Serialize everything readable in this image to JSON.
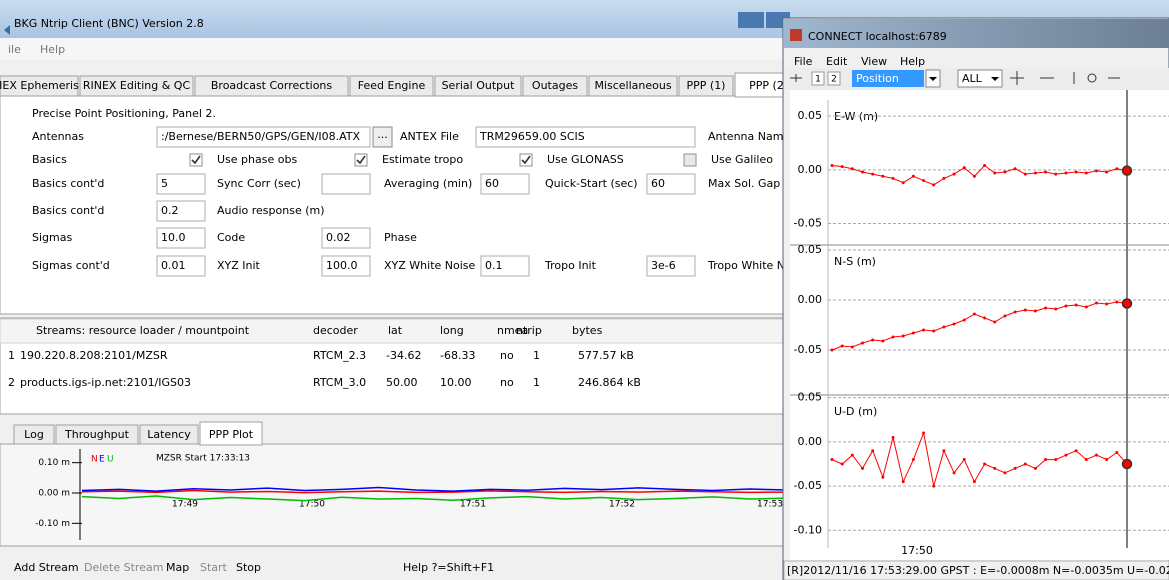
{
  "main_window": {
    "title": "BKG Ntrip Client (BNC) Version 2.8",
    "menu": [
      "ile",
      "Help"
    ],
    "tabs": [
      "IEX Ephemeris",
      "RINEX Editing & QC",
      "Broadcast Corrections",
      "Feed Engine",
      "Serial Output",
      "Outages",
      "Miscellaneous",
      "PPP (1)",
      "PPP (2"
    ],
    "active_tab": 8,
    "panel_title": "Precise Point Positioning, Panel 2.",
    "form": [
      {
        "label": "Antennas",
        "items": [
          {
            "type": "field",
            "text": ":/Bernese/BERN50/GPS/GEN/I08.ATX"
          },
          {
            "type": "button",
            "text": "..."
          },
          {
            "type": "text",
            "text": "ANTEX File"
          },
          {
            "type": "field",
            "text": "TRM29659.00    SCIS"
          },
          {
            "type": "text",
            "text": "Antenna Name"
          }
        ]
      },
      {
        "label": "Basics",
        "items": [
          {
            "type": "check",
            "text": "Use phase obs",
            "checked": true
          },
          {
            "type": "check",
            "text": "Estimate tropo",
            "checked": true
          },
          {
            "type": "check",
            "text": "Use GLONASS",
            "checked": true
          },
          {
            "type": "check",
            "text": "Use Galileo",
            "checked": false
          }
        ]
      },
      {
        "label": "Basics cont'd",
        "items": [
          {
            "type": "field",
            "text": "5"
          },
          {
            "type": "text",
            "text": "Sync Corr (sec)"
          },
          {
            "type": "field"
          },
          {
            "type": "text",
            "text": "Averaging (min)"
          },
          {
            "type": "field",
            "text": "60"
          },
          {
            "type": "text",
            "text": "Quick-Start (sec)"
          },
          {
            "type": "field",
            "text": "60"
          },
          {
            "type": "text",
            "text": "Max Sol. Gap ("
          }
        ]
      },
      {
        "label": "Basics cont'd",
        "items": [
          {
            "type": "field",
            "text": "0.2"
          },
          {
            "type": "text",
            "text": "Audio response (m)"
          }
        ]
      },
      {
        "label": "Sigmas",
        "items": [
          {
            "type": "field",
            "text": "10.0"
          },
          {
            "type": "text",
            "text": "Code"
          },
          {
            "type": "field",
            "text": "0.02"
          },
          {
            "type": "text",
            "text": "Phase"
          }
        ]
      },
      {
        "label": "Sigmas cont'd",
        "items": [
          {
            "type": "field",
            "text": "0.01"
          },
          {
            "type": "text",
            "text": "XYZ Init"
          },
          {
            "type": "field",
            "text": "100.0"
          },
          {
            "type": "text",
            "text": "XYZ White Noise"
          },
          {
            "type": "field",
            "text": "0.1"
          },
          {
            "type": "text",
            "text": "Tropo Init"
          },
          {
            "type": "field",
            "text": "3e-6"
          },
          {
            "type": "text",
            "text": "Tropo White N"
          }
        ]
      }
    ],
    "streams": {
      "header": [
        "Streams:  resource loader / mountpoint",
        "decoder",
        "lat",
        "long",
        "nmea",
        "ntrip",
        "bytes"
      ],
      "rows": [
        [
          "1",
          "190.220.8.208:2101/MZSR",
          "RTCM_2.3",
          "-34.62",
          "-68.33",
          "no",
          "1",
          "577.57 kB"
        ],
        [
          "2",
          "products.igs-ip.net:2101/IGS03",
          "RTCM_3.0",
          "50.00",
          "10.00",
          "no",
          "1",
          "246.864 kB"
        ]
      ]
    },
    "bottom_tabs": [
      "Log",
      "Throughput",
      "Latency",
      "PPP Plot"
    ],
    "active_bottom_tab": 3,
    "ppp_plot": {
      "title": "MZSR Start 17:33:13",
      "ylim": [
        -0.155,
        0.145
      ],
      "yticks": [
        {
          "value": 0.1,
          "label": "0.10 m"
        },
        {
          "value": 0,
          "label": "0.00 m"
        },
        {
          "value": -0.1,
          "label": "-0.10 m"
        }
      ],
      "time_labels": [
        "17:49",
        "17:50",
        "17:51",
        "17:52",
        "17:53"
      ],
      "series": [
        {
          "name": "N",
          "color": "#ff0000",
          "values": [
            0.004,
            0.006,
            0.002,
            0.008,
            0.003,
            0.005,
            0.001,
            0.004,
            0.006,
            0.002,
            0.003,
            0.007,
            0.004,
            0.002,
            0.005,
            0.003,
            0.006,
            0.004,
            0.002,
            0.003
          ]
        },
        {
          "name": "E",
          "color": "#0000ff",
          "values": [
            0.008,
            0.012,
            0.006,
            0.014,
            0.01,
            0.016,
            0.008,
            0.012,
            0.018,
            0.01,
            0.006,
            0.012,
            0.009,
            0.015,
            0.011,
            0.017,
            0.012,
            0.008,
            0.013,
            0.01
          ]
        },
        {
          "name": "U",
          "color": "#00bb00",
          "values": [
            -0.012,
            -0.018,
            -0.01,
            -0.022,
            -0.015,
            -0.02,
            -0.025,
            -0.014,
            -0.02,
            -0.018,
            -0.024,
            -0.016,
            -0.012,
            -0.02,
            -0.015,
            -0.022,
            -0.018,
            -0.013,
            -0.02,
            -0.017
          ]
        }
      ]
    },
    "buttons": [
      {
        "text": "Add Stream",
        "enabled": true
      },
      {
        "text": "Delete Stream",
        "enabled": false
      },
      {
        "text": "Map",
        "enabled": true
      },
      {
        "text": "Start",
        "enabled": false
      },
      {
        "text": "Stop",
        "enabled": true
      }
    ],
    "help": "Help ?=Shift+F1"
  },
  "connect_window": {
    "title": "CONNECT localhost:6789",
    "menu": [
      "File",
      "Edit",
      "View",
      "Help"
    ],
    "toolbar": {
      "buttons": [
        "1",
        "2"
      ],
      "plot_type": "Position",
      "satellites": "ALL"
    },
    "plots": [
      {
        "label": "E-W (m)",
        "color": "#ff0000",
        "ylim": [
          -0.07,
          0.065
        ],
        "yticks": [
          0.05,
          {
            "value": 0,
            "label": "0.00"
          },
          -0.05
        ],
        "values": [
          0.004,
          0.003,
          0.001,
          -0.002,
          -0.004,
          -0.006,
          -0.008,
          -0.012,
          -0.006,
          -0.01,
          -0.014,
          -0.008,
          -0.004,
          0.002,
          -0.006,
          0.004,
          -0.003,
          -0.002,
          0.001,
          -0.004,
          -0.003,
          -0.002,
          -0.004,
          -0.003,
          -0.002,
          -0.003,
          -0.001,
          -0.002,
          0.001,
          -0.0008
        ]
      },
      {
        "label": "N-S (m)",
        "color": "#ff0000",
        "ylim": [
          -0.095,
          0.055
        ],
        "yticks": [
          0.05,
          {
            "value": 0,
            "label": "0.00"
          },
          -0.05
        ],
        "values": [
          -0.05,
          -0.046,
          -0.047,
          -0.043,
          -0.04,
          -0.041,
          -0.037,
          -0.036,
          -0.033,
          -0.03,
          -0.031,
          -0.027,
          -0.024,
          -0.02,
          -0.014,
          -0.018,
          -0.022,
          -0.016,
          -0.012,
          -0.01,
          -0.011,
          -0.008,
          -0.009,
          -0.006,
          -0.005,
          -0.007,
          -0.003,
          -0.004,
          -0.002,
          -0.0035
        ]
      },
      {
        "label": "U-D (m)",
        "color": "#ff0000",
        "ylim": [
          -0.12,
          0.053
        ],
        "yticks": [
          0.05,
          {
            "value": 0,
            "label": "0.00"
          },
          -0.05,
          {
            "value": -0.1,
            "label": "-0.10"
          }
        ],
        "values": [
          -0.02,
          -0.025,
          -0.015,
          -0.03,
          -0.01,
          -0.04,
          0.005,
          -0.045,
          -0.02,
          0.01,
          -0.05,
          -0.01,
          -0.035,
          -0.02,
          -0.045,
          -0.025,
          -0.03,
          -0.035,
          -0.03,
          -0.025,
          -0.03,
          -0.02,
          -0.02,
          -0.015,
          -0.01,
          -0.02,
          -0.015,
          -0.02,
          -0.012,
          -0.025
        ]
      }
    ],
    "x_label": "17:50",
    "status": "[R]2012/11/16 17:53:29.00 GPST : E=-0.0008m N=-0.0035m U=-0.0250m ("
  }
}
